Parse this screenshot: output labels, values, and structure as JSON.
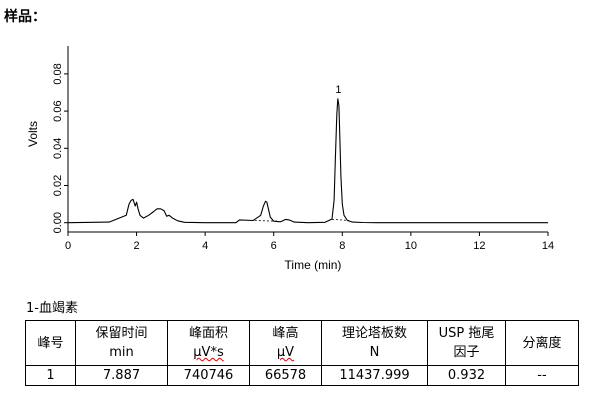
{
  "sample_label": "样品：",
  "chart_data": {
    "type": "line",
    "xlabel": "Time (min)",
    "ylabel": "Volts",
    "xlim": [
      0,
      14
    ],
    "ylim": [
      -0.005,
      0.095
    ],
    "xticks": [
      0,
      2,
      4,
      6,
      8,
      10,
      12,
      14
    ],
    "yticks": [
      0.0,
      0.02,
      0.04,
      0.06,
      0.08
    ],
    "ytick_labels": [
      "0.00",
      "0.02",
      "0.04",
      "0.06",
      "0.08"
    ],
    "grid": false,
    "peak_labels": [
      {
        "x": 7.887,
        "y": 0.0666,
        "text": "1"
      }
    ],
    "series": [
      {
        "x": [
          0,
          1.2,
          1.7,
          1.78,
          1.84,
          1.9,
          1.96,
          2.0,
          2.05,
          2.1,
          2.2,
          2.35,
          2.5,
          2.6,
          2.7,
          2.8,
          2.88,
          2.95,
          3.05,
          3.2,
          3.4,
          4.0,
          4.9,
          5.0,
          5.4,
          5.62,
          5.7,
          5.76,
          5.8,
          5.85,
          5.9,
          6.0,
          6.2,
          6.35,
          6.45,
          6.6,
          7.0,
          7.5,
          7.7,
          7.76,
          7.8,
          7.84,
          7.87,
          7.9,
          7.93,
          7.96,
          8.0,
          8.05,
          8.15,
          8.3,
          8.6,
          9.0,
          14.0
        ],
        "y": [
          0.0,
          0.0003,
          0.004,
          0.01,
          0.012,
          0.0125,
          0.009,
          0.011,
          0.007,
          0.004,
          0.0025,
          0.004,
          0.006,
          0.0075,
          0.0075,
          0.0065,
          0.0035,
          0.004,
          0.0025,
          0.001,
          0.0002,
          0.0,
          0.0,
          0.0015,
          0.0012,
          0.004,
          0.009,
          0.0115,
          0.011,
          0.007,
          0.003,
          0.0008,
          0.0005,
          0.0018,
          0.0015,
          0.0003,
          0.0,
          0.0002,
          0.002,
          0.012,
          0.035,
          0.058,
          0.0666,
          0.063,
          0.045,
          0.025,
          0.01,
          0.004,
          0.0012,
          0.0003,
          0.0001,
          0.0,
          0.0
        ]
      }
    ],
    "baseline_segments": [
      {
        "x": [
          5.45,
          6.1
        ],
        "y": [
          0.0012,
          0.0008
        ]
      },
      {
        "x": [
          7.7,
          8.2
        ],
        "y": [
          0.0018,
          0.0012
        ]
      }
    ]
  },
  "compound_title": "1-血竭素",
  "table": {
    "headers": [
      [
        "峰号"
      ],
      [
        "保留时间",
        "min"
      ],
      [
        "峰面积",
        "µV*s"
      ],
      [
        "峰高",
        "µV"
      ],
      [
        "理论塔板数",
        "N"
      ],
      [
        "USP 拖尾",
        "因子"
      ],
      [
        "分离度"
      ]
    ],
    "rows": [
      [
        "1",
        "7.887",
        "740746",
        "66578",
        "11437.999",
        "0.932",
        "--"
      ]
    ]
  }
}
